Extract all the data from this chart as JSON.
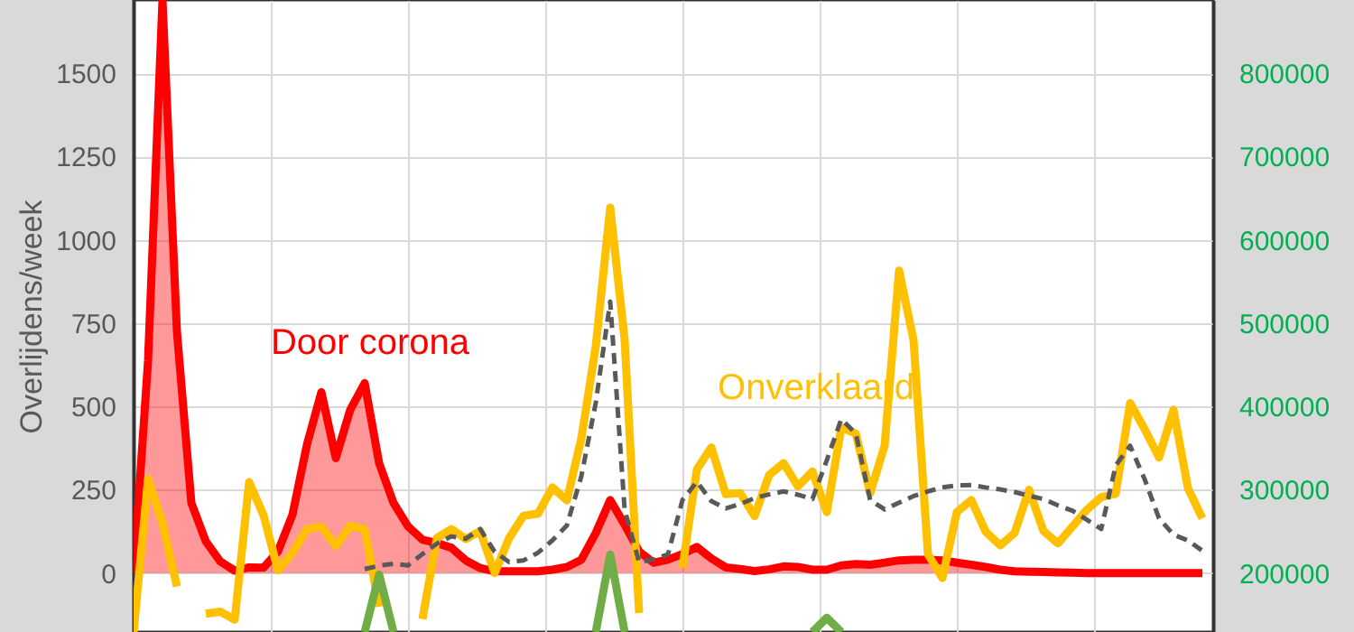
{
  "chart_data": {
    "type": "line",
    "ylabel": "Overlijdens/week",
    "categories": [
      null,
      null,
      null,
      null,
      null,
      null,
      null,
      null,
      null,
      null,
      null,
      null,
      null,
      null,
      null,
      null,
      null,
      null,
      null,
      null,
      null,
      null,
      null,
      null,
      null,
      null,
      null,
      null,
      null,
      null,
      null,
      null,
      null,
      null,
      null,
      null,
      null,
      null,
      null,
      null,
      null,
      null,
      null,
      null,
      null,
      null,
      null,
      null,
      null,
      null,
      null,
      null,
      null,
      null,
      null,
      null,
      null,
      null,
      null,
      null,
      null,
      null,
      null,
      null,
      null,
      null,
      null,
      null,
      null,
      null,
      null,
      null,
      null,
      null,
      null
    ],
    "ylim": [
      -177,
      1720
    ],
    "yticks": [
      0,
      250,
      500,
      750,
      1000,
      1250,
      1500
    ],
    "y2lim": [
      129000,
      888000
    ],
    "y2ticks": [
      200000,
      300000,
      400000,
      500000,
      600000,
      700000,
      800000
    ],
    "grid": true,
    "legend": false,
    "series": [
      {
        "name": "Door corona",
        "type": "area",
        "color": "#ff0000",
        "values": [
          0,
          636,
          1720,
          725,
          210,
          95,
          35,
          7,
          17,
          16,
          65,
          175,
          385,
          543,
          345,
          490,
          570,
          330,
          210,
          140,
          100,
          90,
          76,
          38,
          15,
          5,
          5,
          5,
          5,
          10,
          18,
          40,
          120,
          219,
          145,
          65,
          31,
          40,
          57,
          78,
          44,
          17,
          12,
          6,
          11,
          20,
          18,
          10,
          10,
          23,
          27,
          25,
          31,
          38,
          40,
          40,
          38,
          31,
          25,
          18,
          10,
          5,
          4,
          3,
          2,
          1,
          0,
          0,
          0,
          0,
          0,
          0,
          0,
          0,
          0
        ]
      },
      {
        "name": "Onverklaard",
        "color": "#ffc000",
        "values": [
          -177,
          282,
          150,
          -40,
          null,
          -122,
          -116,
          -140,
          273,
          173,
          8,
          61,
          132,
          139,
          81,
          142,
          131,
          -101,
          null,
          null,
          -138,
          105,
          132,
          102,
          126,
          0,
          105,
          172,
          178,
          257,
          218,
          404,
          680,
          1097,
          700,
          -120,
          null,
          null,
          16,
          311,
          377,
          237,
          240,
          171,
          294,
          330,
          260,
          305,
          183,
          436,
          419,
          240,
          382,
          908,
          700,
          56,
          -15,
          183,
          219,
          124,
          83,
          120,
          250,
          126,
          89,
          139,
          190,
          228,
          238,
          510,
          432,
          347,
          490,
          255,
          164
        ]
      },
      {
        "type": "line",
        "color": "#595959",
        "line_style": "dashed",
        "values": [
          null,
          null,
          null,
          null,
          null,
          null,
          null,
          null,
          null,
          null,
          null,
          null,
          null,
          null,
          null,
          null,
          12,
          22,
          28,
          23,
          57,
          88,
          110,
          103,
          132,
          64,
          33,
          38,
          61,
          98,
          143,
          290,
          511,
          815,
          190,
          33,
          41,
          56,
          219,
          274,
          216,
          194,
          207,
          225,
          236,
          245,
          235,
          222,
          339,
          462,
          419,
          219,
          191,
          211,
          231,
          245,
          257,
          263,
          264,
          257,
          251,
          243,
          232,
          222,
          203,
          187,
          160,
          132,
          323,
          382,
          282,
          164,
          115,
          98,
          67
        ]
      },
      {
        "type": "line",
        "color": "#70ad47",
        "axis": "y2",
        "values": [
          null,
          null,
          null,
          null,
          null,
          null,
          null,
          null,
          null,
          null,
          null,
          null,
          null,
          null,
          null,
          null,
          129000,
          198000,
          129000,
          null,
          null,
          null,
          null,
          null,
          null,
          null,
          null,
          null,
          null,
          null,
          null,
          null,
          129000,
          222000,
          129000,
          null,
          null,
          null,
          null,
          null,
          null,
          null,
          null,
          null,
          null,
          null,
          null,
          129000,
          146000,
          129000,
          null,
          null,
          null,
          null,
          null,
          null,
          null,
          null,
          null,
          null,
          null,
          null,
          null,
          null,
          null,
          null,
          null,
          null,
          null,
          null,
          null,
          null,
          null,
          null,
          null
        ]
      }
    ]
  }
}
